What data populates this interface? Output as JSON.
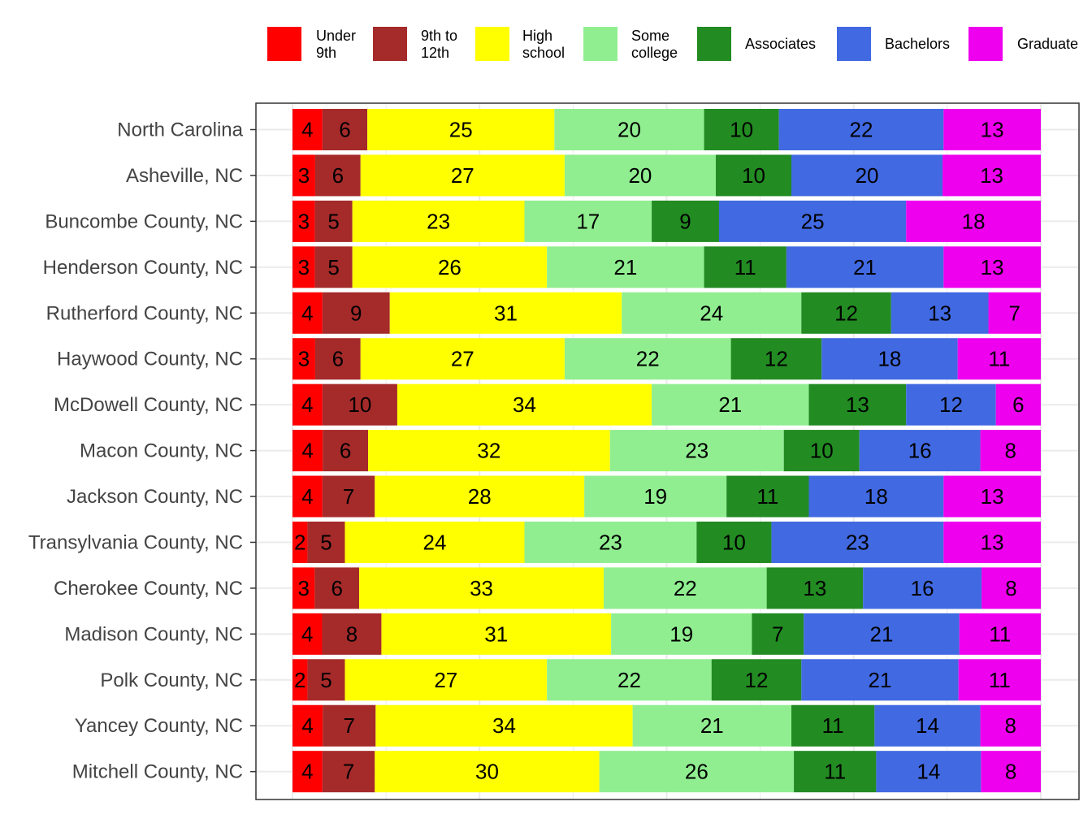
{
  "chart_data": {
    "type": "bar",
    "orientation": "horizontal",
    "stacked": true,
    "normalized": true,
    "title": "",
    "xlabel": "",
    "ylabel": "",
    "xlim": [
      0,
      100
    ],
    "grid": true,
    "legend_position": "top",
    "categories": [
      "North Carolina",
      "Asheville, NC",
      "Buncombe County, NC",
      "Henderson County, NC",
      "Rutherford County, NC",
      "Haywood County, NC",
      "McDowell County, NC",
      "Macon County, NC",
      "Jackson County, NC",
      "Transylvania County, NC",
      "Cherokee County, NC",
      "Madison County, NC",
      "Polk County, NC",
      "Yancey County, NC",
      "Mitchell County, NC"
    ],
    "series": [
      {
        "name": "Under 9th",
        "legend_lines": [
          "Under",
          "9th"
        ],
        "color": "#FF0000",
        "values": [
          4,
          3,
          3,
          3,
          4,
          3,
          4,
          4,
          4,
          2,
          3,
          4,
          2,
          4,
          4
        ]
      },
      {
        "name": "9th to 12th",
        "legend_lines": [
          "9th to",
          "12th"
        ],
        "color": "#A52A2A",
        "values": [
          6,
          6,
          5,
          5,
          9,
          6,
          10,
          6,
          7,
          5,
          6,
          8,
          5,
          7,
          7
        ]
      },
      {
        "name": "High school",
        "legend_lines": [
          "High",
          "school"
        ],
        "color": "#FFFF00",
        "values": [
          25,
          27,
          23,
          26,
          31,
          27,
          34,
          32,
          28,
          24,
          33,
          31,
          27,
          34,
          30
        ]
      },
      {
        "name": "Some college",
        "legend_lines": [
          "Some",
          "college"
        ],
        "color": "#90EE90",
        "values": [
          20,
          20,
          17,
          21,
          24,
          22,
          21,
          23,
          19,
          23,
          22,
          19,
          22,
          21,
          26
        ]
      },
      {
        "name": "Associates",
        "legend_lines": [
          "Associates"
        ],
        "color": "#228B22",
        "values": [
          10,
          10,
          9,
          11,
          12,
          12,
          13,
          10,
          11,
          10,
          13,
          7,
          12,
          11,
          11
        ]
      },
      {
        "name": "Bachelors",
        "legend_lines": [
          "Bachelors"
        ],
        "color": "#4169E1",
        "values": [
          22,
          20,
          25,
          21,
          13,
          18,
          12,
          16,
          18,
          23,
          16,
          21,
          21,
          14,
          14
        ]
      },
      {
        "name": "Graduate",
        "legend_lines": [
          "Graduate"
        ],
        "color": "#EE00EE",
        "values": [
          13,
          13,
          18,
          13,
          7,
          11,
          6,
          8,
          13,
          13,
          8,
          11,
          11,
          8,
          8
        ]
      }
    ]
  }
}
